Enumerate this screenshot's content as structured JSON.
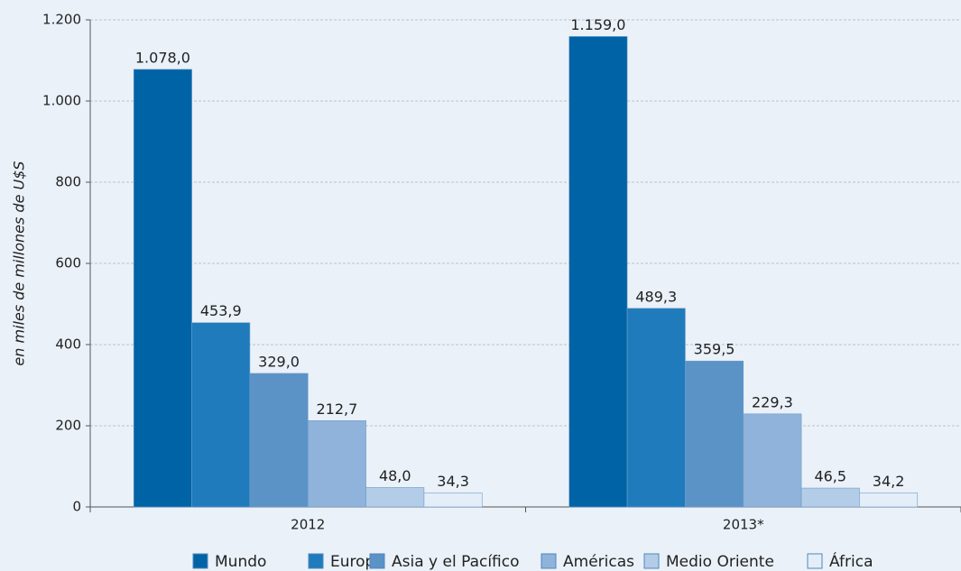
{
  "chart_data": {
    "type": "bar",
    "y_axis_label": "en miles de millones de U$S",
    "categories": [
      "2012",
      "2013*"
    ],
    "series": [
      {
        "name": "Mundo",
        "color": "#0063a6",
        "values": [
          1078.0,
          1159.0
        ],
        "value_labels": [
          "1.078,0",
          "1.159,0"
        ]
      },
      {
        "name": "Europa",
        "color": "#1f7bbb",
        "values": [
          453.9,
          489.3
        ],
        "value_labels": [
          "453,9",
          "489,3"
        ]
      },
      {
        "name": "Asia y el Pacífico",
        "color": "#5b93c7",
        "values": [
          329.0,
          359.5
        ],
        "value_labels": [
          "329,0",
          "359,5"
        ]
      },
      {
        "name": "Américas",
        "color": "#8fb3da",
        "values": [
          212.7,
          229.3
        ],
        "value_labels": [
          "212,7",
          "229,3"
        ]
      },
      {
        "name": "Medio Oriente",
        "color": "#b3cde8",
        "values": [
          48.0,
          46.5
        ],
        "value_labels": [
          "48,0",
          "46,5"
        ]
      },
      {
        "name": "África",
        "color": "#e4eef8",
        "values": [
          34.3,
          34.2
        ],
        "value_labels": [
          "34,3",
          "34,2"
        ]
      }
    ],
    "ylim": [
      0,
      1200
    ],
    "yticks": [
      0,
      200,
      400,
      600,
      800,
      {
        "value": 1000,
        "label": "1.000"
      },
      {
        "value": 1200,
        "label": "1.200"
      }
    ],
    "grid": true
  }
}
